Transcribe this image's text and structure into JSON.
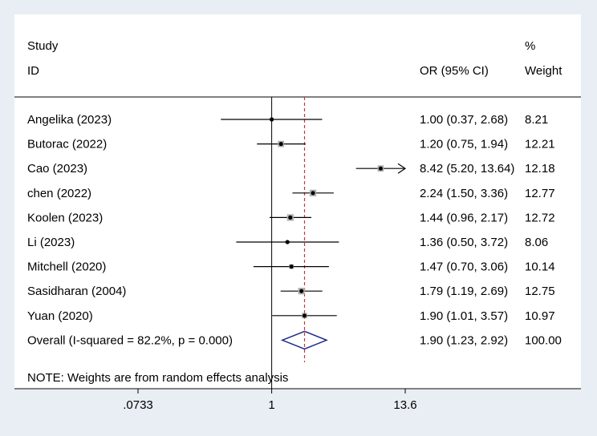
{
  "chart_data": {
    "type": "forest",
    "header": {
      "study_line1": "Study",
      "study_line2": "ID",
      "or_label": "OR (95% CI)",
      "weight_line1": "%",
      "weight_line2": "Weight"
    },
    "studies": [
      {
        "id": "Angelika (2023)",
        "or": 1.0,
        "lo": 0.37,
        "hi": 2.68,
        "label": "1.00 (0.37, 2.68)",
        "weight": "8.21"
      },
      {
        "id": "Butorac (2022)",
        "or": 1.2,
        "lo": 0.75,
        "hi": 1.94,
        "label": "1.20 (0.75, 1.94)",
        "weight": "12.21"
      },
      {
        "id": "Cao (2023)",
        "or": 8.42,
        "lo": 5.2,
        "hi": 13.64,
        "label": "8.42 (5.20, 13.64)",
        "weight": "12.18"
      },
      {
        "id": "chen (2022)",
        "or": 2.24,
        "lo": 1.5,
        "hi": 3.36,
        "label": "2.24 (1.50, 3.36)",
        "weight": "12.77"
      },
      {
        "id": "Koolen (2023)",
        "or": 1.44,
        "lo": 0.96,
        "hi": 2.17,
        "label": "1.44 (0.96, 2.17)",
        "weight": "12.72"
      },
      {
        "id": "Li (2023)",
        "or": 1.36,
        "lo": 0.5,
        "hi": 3.72,
        "label": "1.36 (0.50, 3.72)",
        "weight": "8.06"
      },
      {
        "id": "Mitchell (2020)",
        "or": 1.47,
        "lo": 0.7,
        "hi": 3.06,
        "label": "1.47 (0.70, 3.06)",
        "weight": "10.14"
      },
      {
        "id": "Sasidharan (2004)",
        "or": 1.79,
        "lo": 1.19,
        "hi": 2.69,
        "label": "1.79 (1.19, 2.69)",
        "weight": "12.75"
      },
      {
        "id": "Yuan (2020)",
        "or": 1.9,
        "lo": 1.01,
        "hi": 3.57,
        "label": "1.90 (1.01, 3.57)",
        "weight": "10.97"
      }
    ],
    "overall": {
      "id": "Overall  (I-squared = 82.2%, p = 0.000)",
      "or": 1.9,
      "lo": 1.23,
      "hi": 2.92,
      "label": "1.90 (1.23, 2.92)",
      "weight": "100.00"
    },
    "note": "NOTE: Weights are from random effects analysis",
    "x_scale": "log",
    "xlim": [
      0.0733,
      13.6
    ],
    "x_ticks": [
      {
        "value": 0.0733,
        "label": ".0733"
      },
      {
        "value": 1,
        "label": "1"
      },
      {
        "value": 13.6,
        "label": "13.6"
      }
    ],
    "null_line": 1,
    "overall_line": 1.9,
    "colors": {
      "ci_line": "#000000",
      "box": "#b0b0b0",
      "overall_line": "#c0393b",
      "diamond": "#1c2a8a",
      "background": "#e9eef4",
      "plot_bg": "#ffffff"
    }
  }
}
